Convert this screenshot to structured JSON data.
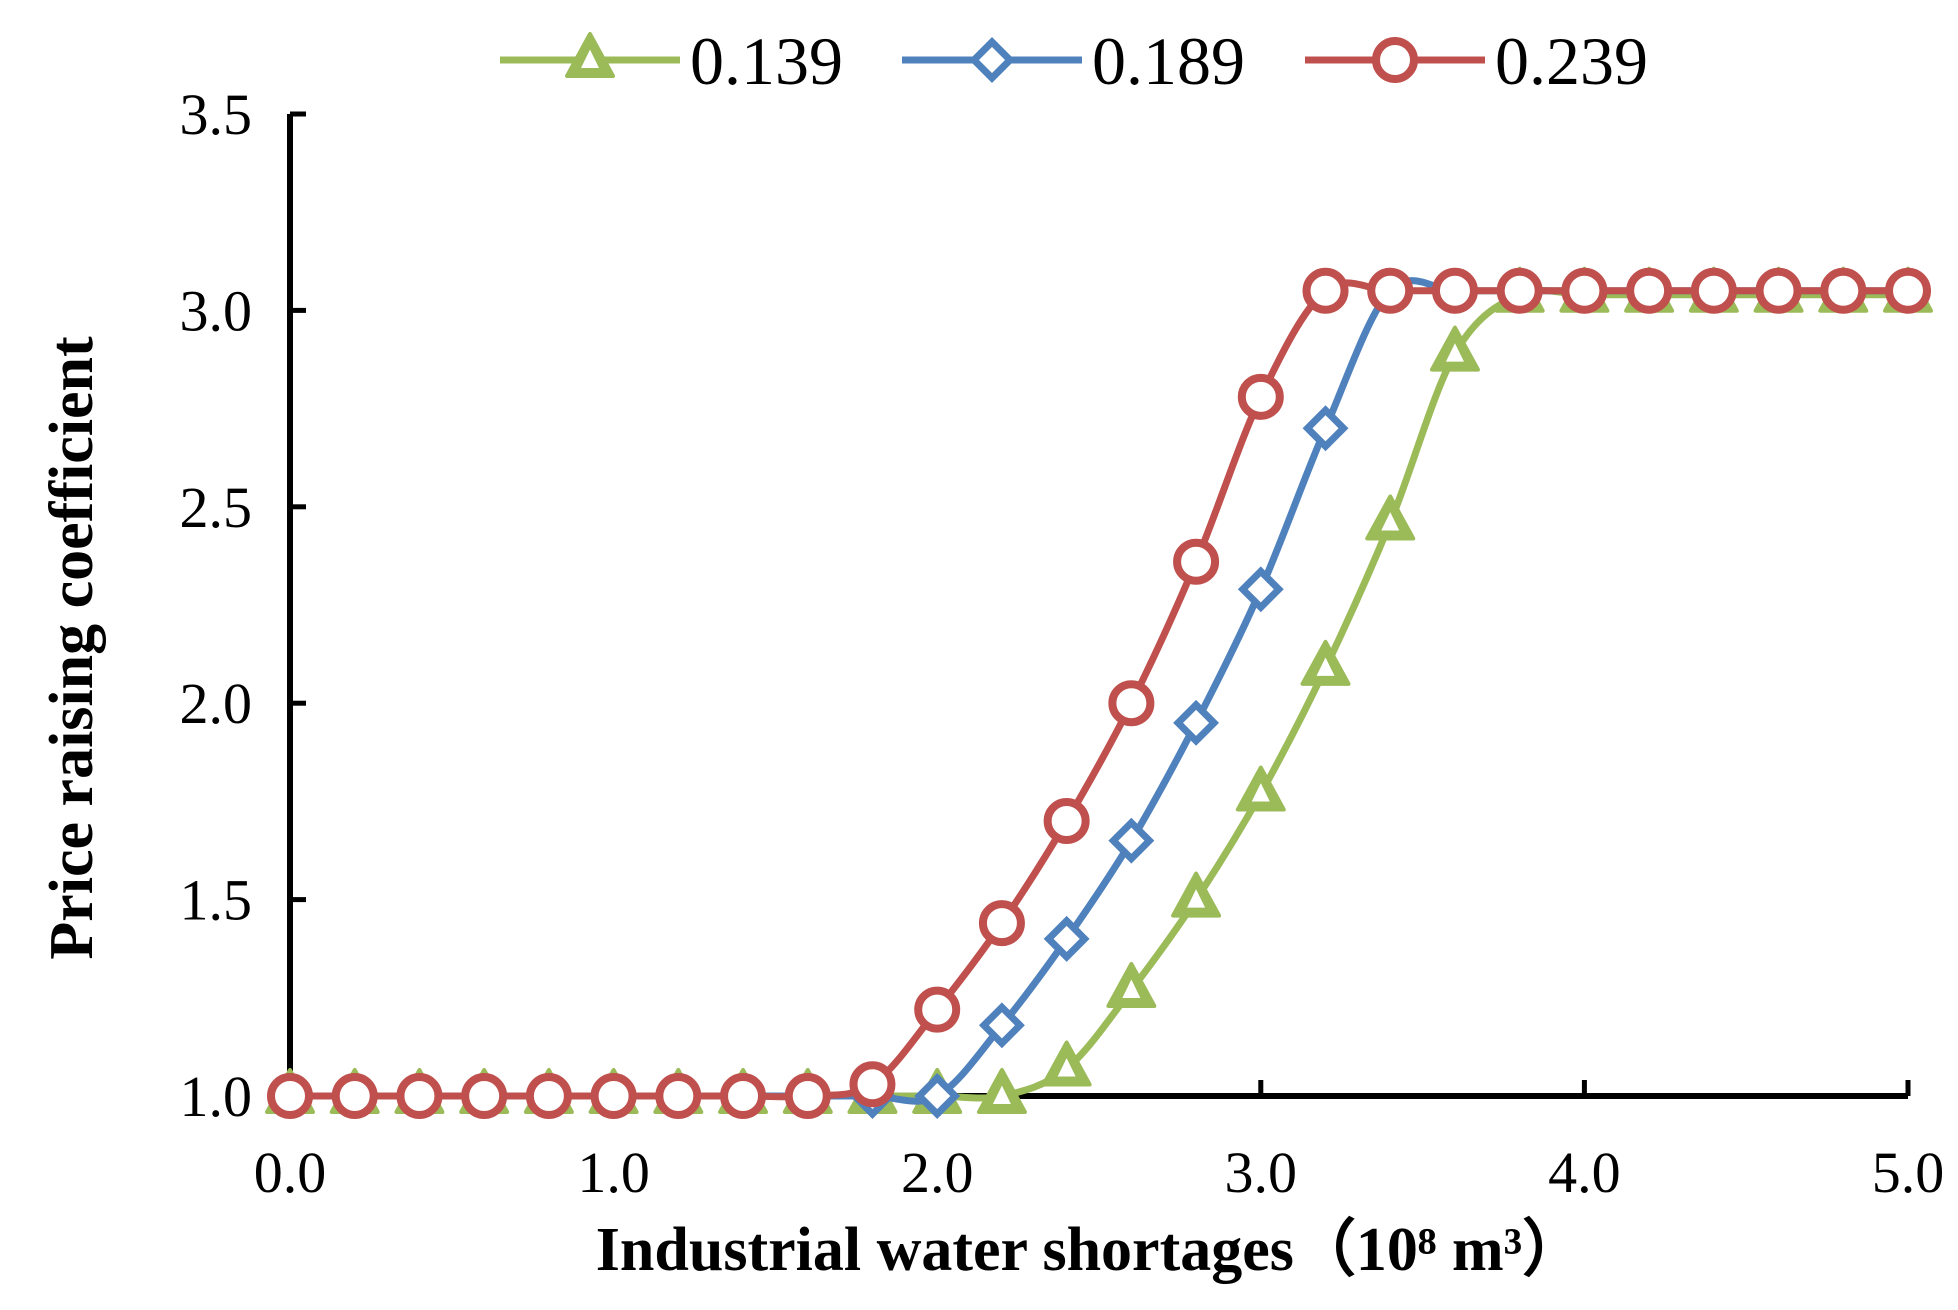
{
  "chart_data": {
    "type": "line",
    "title": "",
    "xlabel": "Industrial water shortages（10⁸ m³）",
    "ylabel": "Price raising coefficient",
    "xlim": [
      0.0,
      5.0
    ],
    "ylim": [
      1.0,
      3.5
    ],
    "x_ticks": [
      "0.0",
      "1.0",
      "2.0",
      "3.0",
      "4.0",
      "5.0"
    ],
    "y_ticks": [
      "1.0",
      "1.5",
      "2.0",
      "2.5",
      "3.0",
      "3.5"
    ],
    "grid": false,
    "legend_position": "top",
    "x": [
      0.0,
      0.2,
      0.4,
      0.6,
      0.8,
      1.0,
      1.2,
      1.4,
      1.6,
      1.8,
      2.0,
      2.2,
      2.4,
      2.6,
      2.8,
      3.0,
      3.2,
      3.4,
      3.6,
      3.8,
      4.0,
      4.2,
      4.4,
      4.6,
      4.8,
      5.0
    ],
    "series": [
      {
        "name": "0.139",
        "color": "#9bbb59",
        "marker": "triangle",
        "values": [
          1.0,
          1.0,
          1.0,
          1.0,
          1.0,
          1.0,
          1.0,
          1.0,
          1.0,
          1.0,
          1.0,
          1.0,
          1.07,
          1.27,
          1.5,
          1.77,
          2.09,
          2.46,
          2.89,
          3.04,
          3.04,
          3.04,
          3.04,
          3.04,
          3.04,
          3.04
        ]
      },
      {
        "name": "0.189",
        "color": "#4f81bd",
        "marker": "diamond",
        "values": [
          1.0,
          1.0,
          1.0,
          1.0,
          1.0,
          1.0,
          1.0,
          1.0,
          1.0,
          1.0,
          1.0,
          1.18,
          1.4,
          1.65,
          1.95,
          2.29,
          2.7,
          3.05,
          3.05,
          3.05,
          3.05,
          3.05,
          3.05,
          3.05,
          3.05,
          3.05
        ]
      },
      {
        "name": "0.239",
        "color": "#c0504d",
        "marker": "circle",
        "values": [
          1.0,
          1.0,
          1.0,
          1.0,
          1.0,
          1.0,
          1.0,
          1.0,
          1.0,
          1.03,
          1.22,
          1.44,
          1.7,
          2.0,
          2.36,
          2.78,
          3.05,
          3.05,
          3.05,
          3.05,
          3.05,
          3.05,
          3.05,
          3.05,
          3.05,
          3.05
        ]
      }
    ]
  }
}
